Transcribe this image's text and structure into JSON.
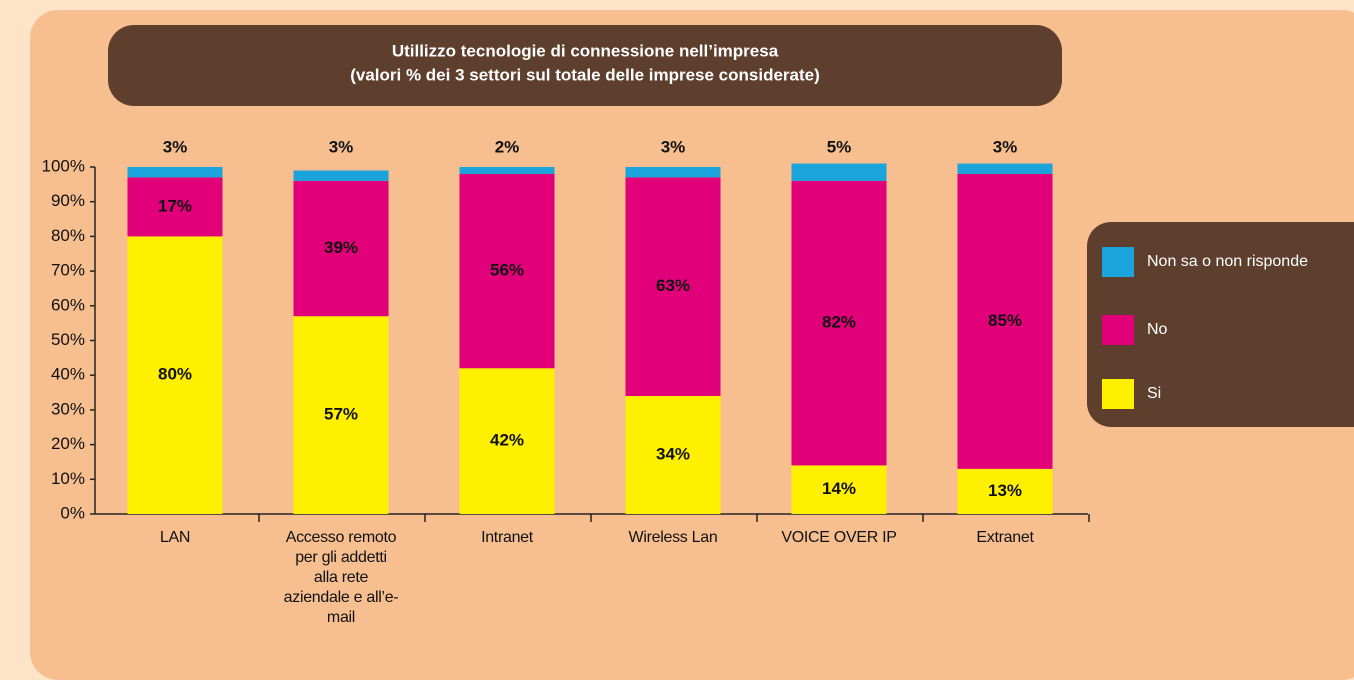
{
  "chart_data": {
    "type": "stacked_bar",
    "title": "Utillizzo tecnologie di connessione nell’impresa",
    "subtitle": "(valori % dei 3 settori sul totale delle imprese considerate)",
    "categories": [
      "LAN",
      "Accesso remoto per gli addetti alla rete aziendale e all’e-mail",
      "Intranet",
      "Wireless Lan",
      "VOICE OVER IP",
      "Extranet"
    ],
    "series": [
      {
        "name": "Si",
        "color": "#fff000",
        "values": [
          80,
          57,
          42,
          34,
          14,
          13
        ],
        "value_labels": [
          "80%",
          "57%",
          "42%",
          "34%",
          "14%",
          "13%"
        ]
      },
      {
        "name": "No",
        "color": "#e2007a",
        "values": [
          17,
          39,
          56,
          63,
          82,
          85
        ],
        "value_labels": [
          "17%",
          "39%",
          "56%",
          "63%",
          "82%",
          "85%"
        ]
      },
      {
        "name": "Non sa o non risponde",
        "color": "#1ba3dc",
        "values": [
          3,
          3,
          2,
          3,
          5,
          3
        ],
        "value_labels": [
          "3%",
          "3%",
          "2%",
          "3%",
          "5%",
          "3%"
        ]
      }
    ],
    "ylim": [
      0,
      100
    ],
    "yticks": [
      {
        "value": 0,
        "label": "0%"
      },
      {
        "value": 10,
        "label": "10%"
      },
      {
        "value": 20,
        "label": "20%"
      },
      {
        "value": 30,
        "label": "30%"
      },
      {
        "value": 40,
        "label": "40%"
      },
      {
        "value": 50,
        "label": "50%"
      },
      {
        "value": 60,
        "label": "60%"
      },
      {
        "value": 70,
        "label": "70%"
      },
      {
        "value": 80,
        "label": "80%"
      },
      {
        "value": 90,
        "label": "90%"
      },
      {
        "value": 100,
        "label": "100%"
      }
    ],
    "legend": "right"
  }
}
